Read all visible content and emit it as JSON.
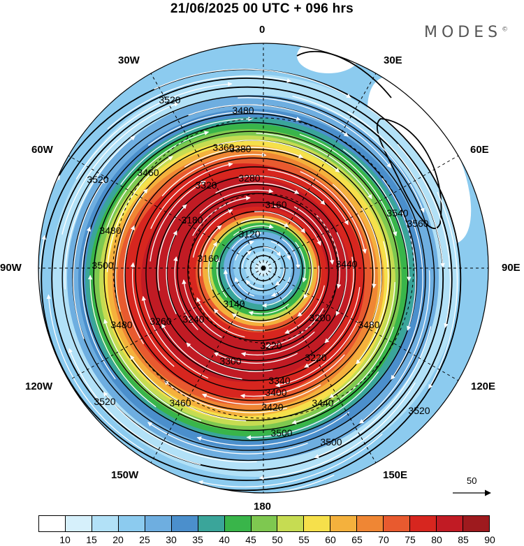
{
  "title": "21/06/2025  00 UTC  + 096 hrs",
  "brand": "MODES",
  "brand_mark": "©",
  "longitude_labels": {
    "lon_0": "0",
    "lon_30e": "30E",
    "lon_60e": "60E",
    "lon_90e": "90E",
    "lon_120e": "120E",
    "lon_150e": "150E",
    "lon_180": "180",
    "lon_150w": "150W",
    "lon_120w": "120W",
    "lon_90w": "90W",
    "lon_60w": "60W",
    "lon_30w": "30W"
  },
  "contour_labels": [
    "3120",
    "3140",
    "3160",
    "3160",
    "3180",
    "3200",
    "3220",
    "3220",
    "3240",
    "3260",
    "3280",
    "3300",
    "3320",
    "3340",
    "3360",
    "3380",
    "3400",
    "3420",
    "3440",
    "3440",
    "3460",
    "3460",
    "3480",
    "3480",
    "3480",
    "3480",
    "3500",
    "3500",
    "3500",
    "3520",
    "3520",
    "3520",
    "3520",
    "3540",
    "3560"
  ],
  "reference_vector": "50",
  "colorbar": {
    "labels": [
      "10",
      "15",
      "20",
      "25",
      "30",
      "35",
      "40",
      "45",
      "50",
      "55",
      "60",
      "65",
      "70",
      "75",
      "80",
      "85",
      "90"
    ],
    "colors": [
      "#ffffff",
      "#d6f0fb",
      "#b2e1f7",
      "#8ccbef",
      "#6eaee0",
      "#4b8fcc",
      "#3aa59a",
      "#39b54a",
      "#7ec850",
      "#c6dc52",
      "#f6e04b",
      "#f4b13d",
      "#ef8634",
      "#e85a2f",
      "#d7261f",
      "#c11b24",
      "#9e1a1e"
    ]
  }
}
